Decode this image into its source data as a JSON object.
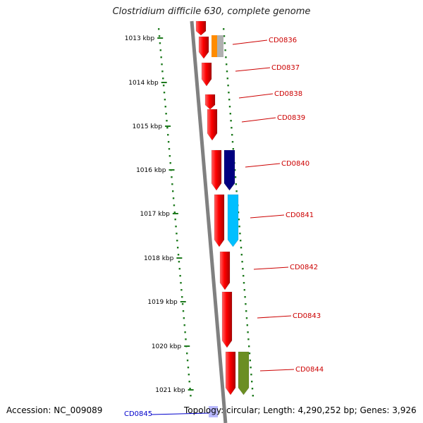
{
  "title": "Clostridium difficile 630, complete genome",
  "accession": "Accession: NC_009089",
  "topology": "Topology: circular; Length: 4,290,252 bp; Genes: 3,926",
  "colors": {
    "backbone": "#808080",
    "tick": "#1e7a1e",
    "gene_label": "#cc0000",
    "highlight_label": "#0000cc"
  },
  "ticks": [
    "1013 kbp",
    "1014 kbp",
    "1015 kbp",
    "1016 kbp",
    "1017 kbp",
    "1018 kbp",
    "1019 kbp",
    "1020 kbp",
    "1021 kbp"
  ],
  "genes": [
    {
      "label": "CD0836",
      "color": "#ff0000"
    },
    {
      "label": "CD0837",
      "color": "#ff0000"
    },
    {
      "label": "CD0838",
      "color": "#ff0000"
    },
    {
      "label": "CD0839",
      "color": "#ff0000"
    },
    {
      "label": "CD0840",
      "color": "#ff0000",
      "second_color": "#000080"
    },
    {
      "label": "CD0841",
      "color": "#ff0000",
      "second_color": "#00bfff"
    },
    {
      "label": "CD0842",
      "color": "#ff0000"
    },
    {
      "label": "CD0843",
      "color": "#ff0000"
    },
    {
      "label": "CD0844",
      "color": "#ff0000",
      "second_color": "#6b8e23"
    },
    {
      "label": "CD0845",
      "color": "#8080ff"
    }
  ],
  "extra_features": [
    {
      "name": "orange-feature",
      "color": "#ff8c00"
    },
    {
      "name": "gray-feature",
      "color": "#b0b0b0"
    }
  ]
}
